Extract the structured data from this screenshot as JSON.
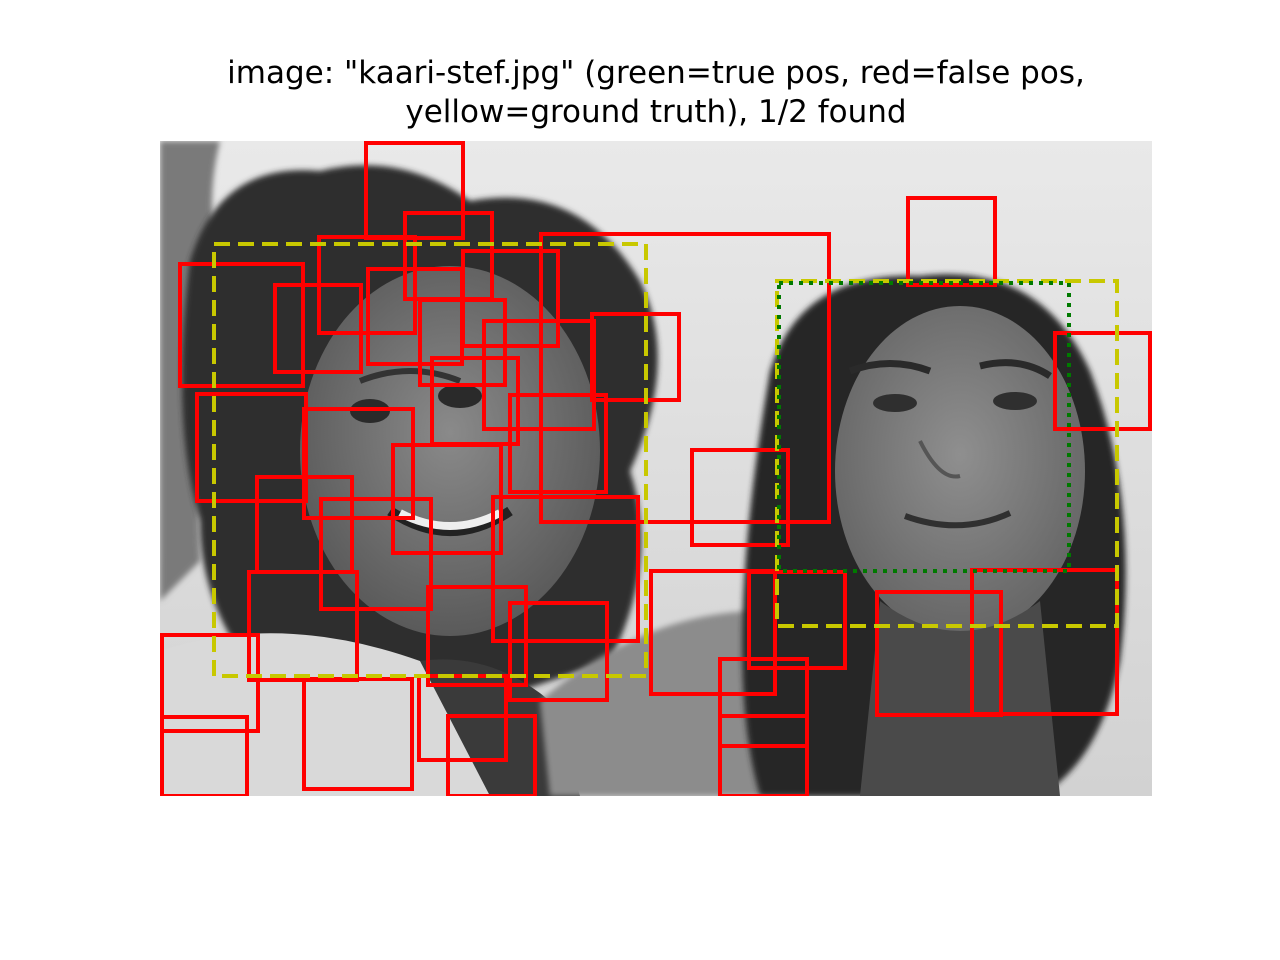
{
  "title": {
    "line1": "image: \"kaari-stef.jpg\" (green=true pos, red=false pos,",
    "line2": "yellow=ground truth), 1/2 found"
  },
  "image": {
    "subject": "grayscale photo of two smiling young women with curly hair",
    "mode": "grayscale"
  },
  "legend_colors": {
    "true_positive": "#007a00",
    "false_positive": "#ff0000",
    "ground_truth": "#c8c800"
  },
  "detections": {
    "found": 1,
    "total": 2
  }
}
